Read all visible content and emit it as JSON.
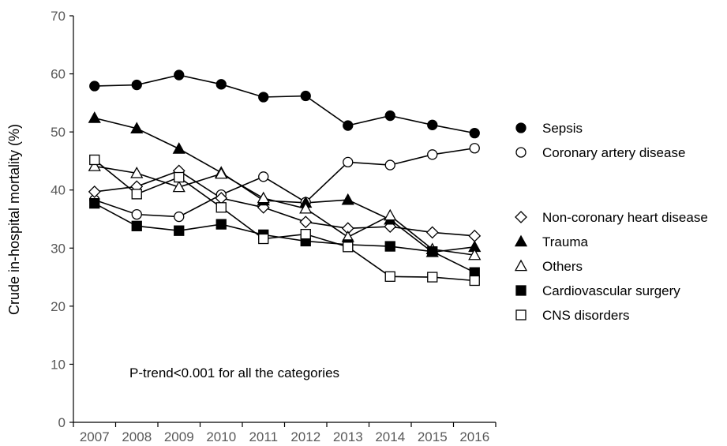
{
  "chart_data": {
    "type": "line",
    "title": "",
    "xlabel": "",
    "ylabel": "Crude in-hospital mortality (%)",
    "ylim": [
      0,
      70
    ],
    "yticks": [
      "0",
      "10",
      "20",
      "30",
      "40",
      "50",
      "60",
      "70"
    ],
    "categories": [
      "2007",
      "2008",
      "2009",
      "2010",
      "2011",
      "2012",
      "2013",
      "2014",
      "2015",
      "2016"
    ],
    "annotation": "P-trend<0.001 for all the categories",
    "grid": false,
    "legend_position": "right",
    "series": [
      {
        "name": "Sepsis",
        "marker": "circle",
        "fill": "#000000",
        "values": [
          57.9,
          58.1,
          59.8,
          58.2,
          56.0,
          56.2,
          51.1,
          52.8,
          51.2,
          49.8
        ]
      },
      {
        "name": "Coronary artery disease",
        "marker": "circle",
        "fill": "#ffffff",
        "values": [
          38.3,
          35.8,
          35.4,
          39.2,
          42.3,
          37.9,
          44.8,
          44.3,
          46.1,
          47.2
        ]
      },
      {
        "name": "Non-coronary heart disease",
        "marker": "diamond",
        "fill": "#ffffff",
        "values": [
          39.7,
          40.6,
          43.3,
          38.6,
          37.0,
          34.5,
          33.4,
          33.7,
          32.7,
          32.1
        ]
      },
      {
        "name": "Trauma",
        "marker": "triangle",
        "fill": "#000000",
        "values": [
          52.4,
          50.6,
          47.1,
          43.0,
          38.2,
          37.8,
          38.3,
          34.9,
          29.3,
          30.2
        ]
      },
      {
        "name": "Others",
        "marker": "triangle",
        "fill": "#ffffff",
        "values": [
          44.1,
          42.9,
          40.5,
          42.8,
          38.6,
          36.8,
          31.9,
          35.6,
          29.8,
          28.8
        ]
      },
      {
        "name": "Cardiovascular surgery",
        "marker": "square",
        "fill": "#000000",
        "values": [
          37.7,
          33.8,
          33.0,
          34.1,
          32.3,
          31.2,
          30.6,
          30.3,
          29.4,
          25.8
        ]
      },
      {
        "name": "CNS disorders",
        "marker": "square",
        "fill": "#ffffff",
        "values": [
          45.2,
          39.3,
          42.2,
          37.0,
          31.6,
          32.4,
          30.2,
          25.1,
          25.0,
          24.4
        ]
      }
    ],
    "legend_groups": [
      [
        "Sepsis",
        "Coronary artery disease"
      ],
      [
        "Non-coronary heart disease",
        "Trauma",
        "Others",
        "Cardiovascular surgery",
        "CNS disorders"
      ]
    ]
  }
}
